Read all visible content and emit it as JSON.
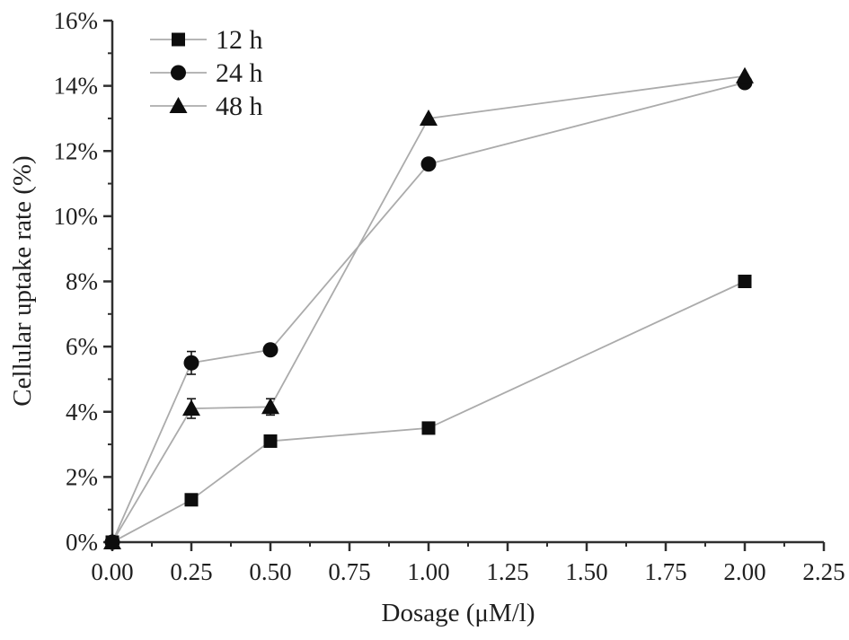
{
  "chart_data": {
    "type": "line",
    "title": "",
    "xlabel": "Dosage (μM/l)",
    "ylabel": "Cellular uptake rate (%)",
    "xlim": [
      0,
      2.25
    ],
    "ylim": [
      0,
      16
    ],
    "x_major_ticks": [
      0.0,
      0.25,
      0.5,
      0.75,
      1.0,
      1.25,
      1.5,
      1.75,
      2.0,
      2.25
    ],
    "x_tick_labels": [
      "0.00",
      "0.25",
      "0.50",
      "0.75",
      "1.00",
      "1.25",
      "1.50",
      "1.75",
      "2.00",
      "2.25"
    ],
    "x_minor_ticks": [
      0.125,
      0.375,
      0.625,
      0.875,
      1.125,
      1.375,
      1.625,
      1.875,
      2.125
    ],
    "y_major_ticks": [
      0,
      2,
      4,
      6,
      8,
      10,
      12,
      14,
      16
    ],
    "y_tick_labels": [
      "0%",
      "2%",
      "4%",
      "6%",
      "8%",
      "10%",
      "12%",
      "14%",
      "16%"
    ],
    "y_minor_ticks": [
      1,
      3,
      5,
      7,
      9,
      11,
      13,
      15
    ],
    "grid": false,
    "legend_position": "top-left-inside",
    "x": [
      0,
      0.25,
      0.5,
      1.0,
      2.0
    ],
    "series": [
      {
        "name": "12 h",
        "marker": "square",
        "values": [
          0,
          1.3,
          3.1,
          3.5,
          8.0
        ],
        "errors": [
          0,
          0,
          0,
          0,
          0
        ]
      },
      {
        "name": "24 h",
        "marker": "circle",
        "values": [
          0,
          5.5,
          5.9,
          11.6,
          14.1
        ],
        "errors": [
          0,
          0.35,
          0,
          0,
          0
        ]
      },
      {
        "name": "48 h",
        "marker": "triangle",
        "values": [
          0,
          4.1,
          4.15,
          13.0,
          14.3
        ],
        "errors": [
          0,
          0.3,
          0.25,
          0,
          0
        ]
      }
    ],
    "colors": {
      "marker": "#0d0d0d",
      "line": "#ababab",
      "axis": "#2f2f2f",
      "text": "#1f1f1f",
      "background": "#ffffff"
    }
  }
}
